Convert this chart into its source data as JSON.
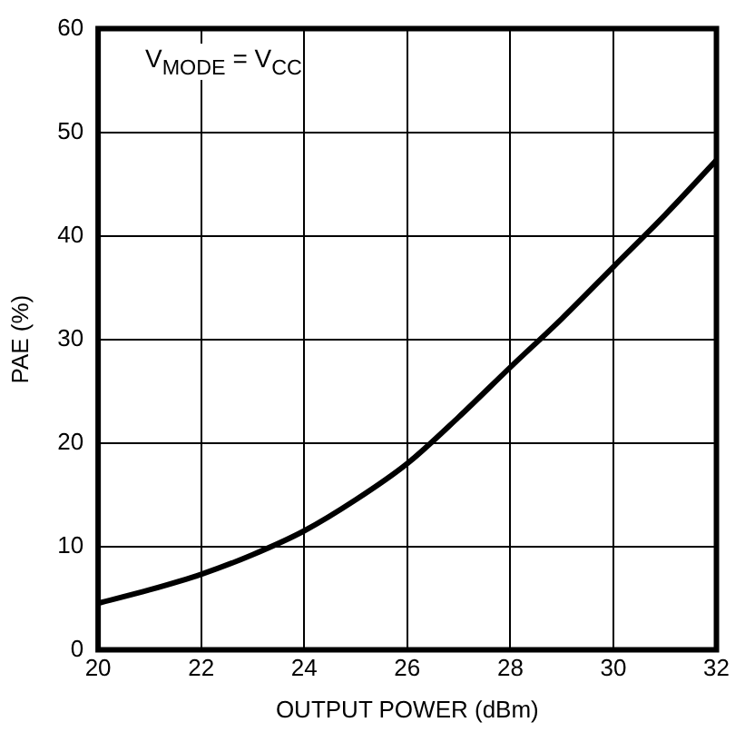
{
  "chart_data": {
    "type": "line",
    "xlabel": "OUTPUT POWER (dBm)",
    "ylabel": "PAE (%)",
    "annotations": [
      "V$_{MODE}$ = V$_{CC}$"
    ],
    "x": [
      20,
      21,
      22,
      23,
      24,
      25,
      26,
      27,
      28,
      29,
      30,
      31,
      32
    ],
    "series": [
      {
        "color": "#000000",
        "values": [
          4.5,
          5.8,
          7.3,
          9.2,
          11.5,
          14.5,
          18,
          22.5,
          27.3,
          32,
          37,
          42,
          47.3
        ]
      }
    ],
    "xlim": [
      20,
      32
    ],
    "xticks": [
      20,
      22,
      24,
      26,
      28,
      30,
      32
    ],
    "ylim": [
      0,
      60
    ],
    "yticks": [
      0,
      10,
      20,
      30,
      40,
      50,
      60
    ],
    "grid": true,
    "legend": false,
    "marker": "none",
    "line_style": "solid"
  }
}
